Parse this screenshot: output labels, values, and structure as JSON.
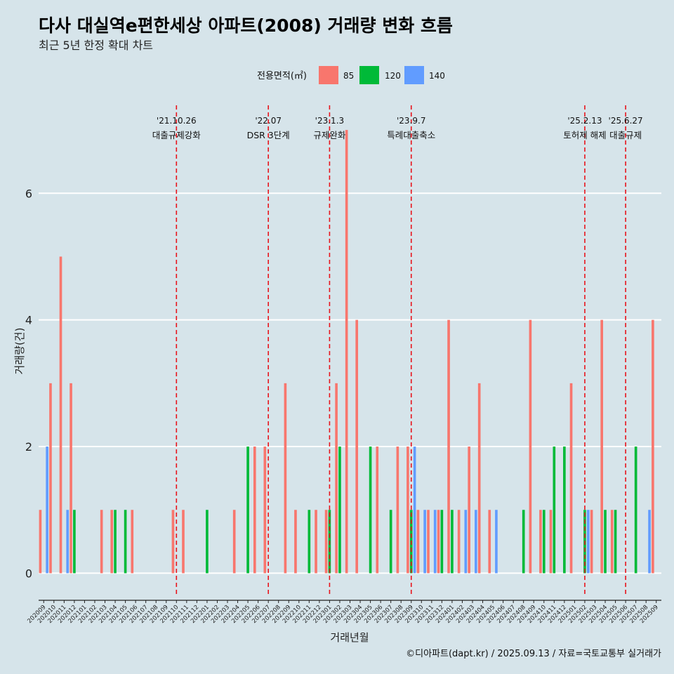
{
  "header": {
    "title": "다사 대실역e편한세상 아파트(2008) 거래량 변화 흐름",
    "subtitle": "최근 5년 한정 확대 차트"
  },
  "footer": {
    "caption": "©디아파트(dapt.kr) / 2025.09.13 / 자료=국토교통부 실거래가"
  },
  "colors": {
    "background": "#d6e4ea",
    "gridline": "#ffffff",
    "event_line": "#e8141c"
  },
  "chart_data": {
    "type": "bar",
    "xlabel": "거래년월",
    "ylabel": "거래량(건)",
    "ylim": [
      -0.35,
      7.5
    ],
    "yticks": [
      0,
      2,
      4,
      6
    ],
    "grid": true,
    "legend": {
      "title": "전용면적(㎡)",
      "position": "top",
      "entries": [
        {
          "label": "85",
          "color": "#f8766d"
        },
        {
          "label": "120",
          "color": "#00ba38"
        },
        {
          "label": "140",
          "color": "#619cff"
        }
      ]
    },
    "x": [
      "202009",
      "202010",
      "202011",
      "202012",
      "202101",
      "202102",
      "202103",
      "202104",
      "202105",
      "202106",
      "202107",
      "202108",
      "202109",
      "202110",
      "202111",
      "202112",
      "202201",
      "202202",
      "202203",
      "202204",
      "202205",
      "202206",
      "202207",
      "202208",
      "202209",
      "202210",
      "202211",
      "202212",
      "202301",
      "202302",
      "202303",
      "202304",
      "202305",
      "202306",
      "202307",
      "202308",
      "202309",
      "202310",
      "202311",
      "202312",
      "202401",
      "202402",
      "202403",
      "202404",
      "202405",
      "202406",
      "202407",
      "202408",
      "202409",
      "202410",
      "202411",
      "202412",
      "202501",
      "202502",
      "202503",
      "202504",
      "202505",
      "202506",
      "202507",
      "202508",
      "202509"
    ],
    "series": [
      {
        "name": "85",
        "color": "#f8766d",
        "values": [
          1,
          3,
          5,
          3,
          0,
          0,
          1,
          1,
          0,
          1,
          0,
          0,
          0,
          1,
          1,
          0,
          0,
          0,
          0,
          1,
          0,
          2,
          2,
          0,
          3,
          1,
          0,
          1,
          1,
          3,
          7,
          4,
          0,
          2,
          0,
          2,
          2,
          1,
          1,
          1,
          4,
          1,
          2,
          3,
          1,
          0,
          0,
          0,
          4,
          1,
          1,
          0,
          3,
          0,
          1,
          4,
          1,
          0,
          0,
          0,
          4
        ]
      },
      {
        "name": "120",
        "color": "#00ba38",
        "values": [
          0,
          0,
          0,
          1,
          0,
          0,
          0,
          1,
          1,
          0,
          0,
          0,
          0,
          0,
          0,
          0,
          1,
          0,
          0,
          0,
          2,
          0,
          0,
          0,
          0,
          0,
          1,
          0,
          1,
          2,
          0,
          0,
          2,
          0,
          1,
          0,
          1,
          0,
          0,
          1,
          1,
          0,
          0,
          0,
          0,
          0,
          0,
          1,
          0,
          1,
          2,
          2,
          0,
          1,
          0,
          1,
          1,
          0,
          2,
          0,
          0
        ]
      },
      {
        "name": "140",
        "color": "#619cff",
        "values": [
          2,
          0,
          1,
          0,
          0,
          0,
          0,
          0,
          0,
          0,
          0,
          0,
          0,
          0,
          0,
          0,
          0,
          0,
          0,
          0,
          0,
          0,
          0,
          0,
          0,
          0,
          0,
          0,
          0,
          0,
          0,
          0,
          0,
          0,
          0,
          0,
          2,
          1,
          1,
          0,
          0,
          1,
          1,
          0,
          1,
          0,
          0,
          0,
          0,
          0,
          0,
          0,
          0,
          1,
          0,
          0,
          0,
          0,
          0,
          1,
          0
        ]
      }
    ],
    "events": [
      {
        "x": "202110",
        "date": "'21.10.26",
        "label": "대출규제강화"
      },
      {
        "x": "202207",
        "date": "'22.07",
        "label": "DSR 3단계"
      },
      {
        "x": "202301",
        "date": "'23.1.3",
        "label": "규제완화"
      },
      {
        "x": "202309",
        "date": "'23.9.7",
        "label": "특례대출축소"
      },
      {
        "x": "202502",
        "date": "'25.2.13",
        "label": "토허제 해제"
      },
      {
        "x": "202506",
        "date": "'25.6.27",
        "label": "대출규제"
      }
    ]
  }
}
